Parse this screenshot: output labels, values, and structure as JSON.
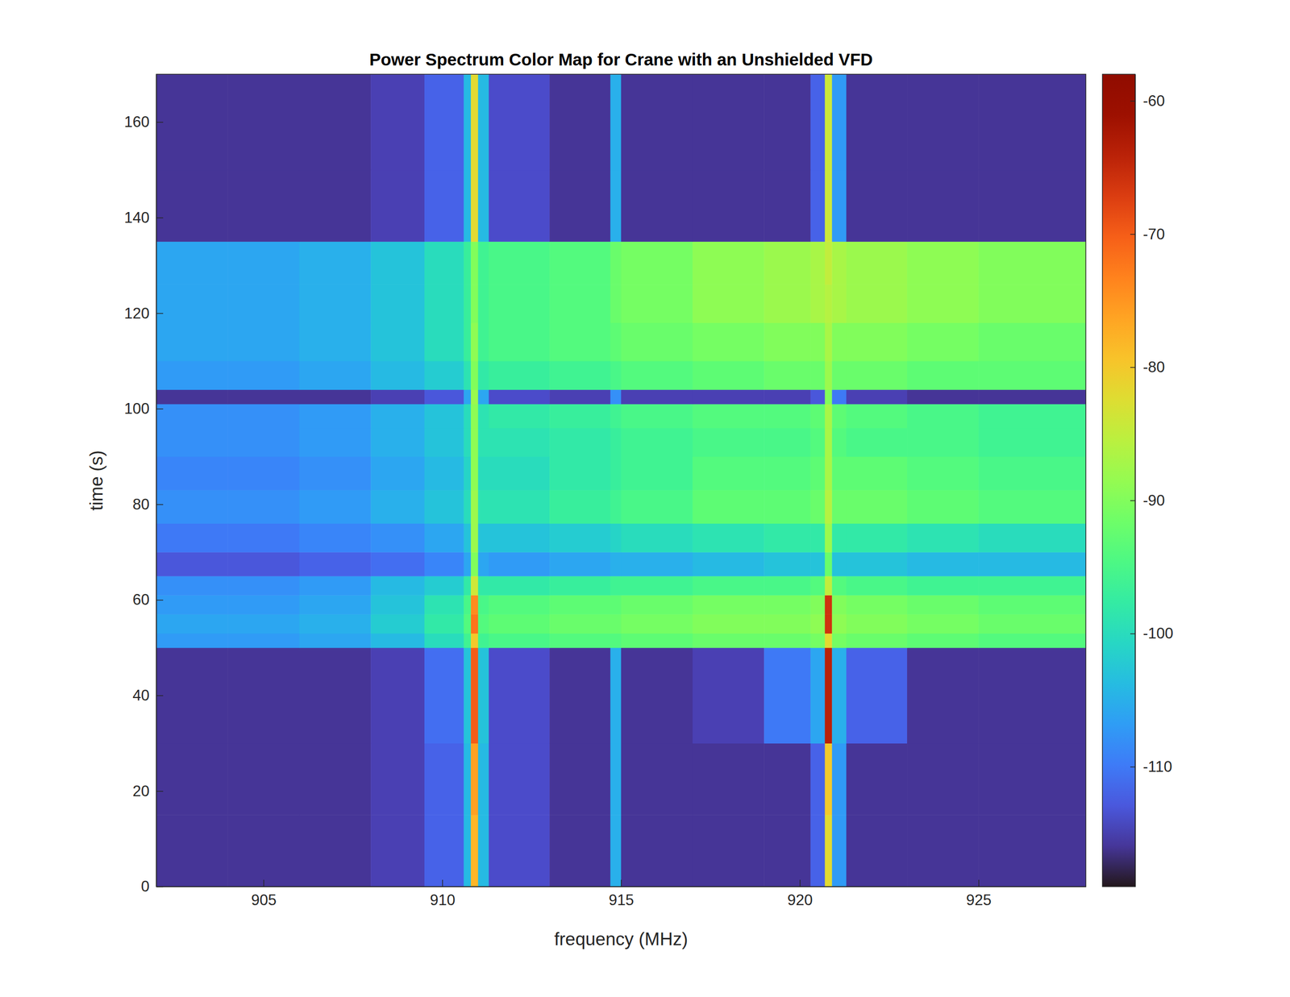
{
  "chart_data": {
    "type": "heatmap",
    "title": "Power Spectrum Color Map for Crane with an Unshielded VFD",
    "x_label": "frequency (MHz)",
    "y_label": "time (s)",
    "xlim": [
      902,
      928
    ],
    "ylim": [
      0,
      170
    ],
    "xticks": [
      905,
      910,
      915,
      920,
      925
    ],
    "yticks": [
      0,
      20,
      40,
      60,
      80,
      100,
      120,
      140,
      160
    ],
    "xbins": [
      902,
      904,
      906,
      908,
      909.5,
      910.6,
      910.8,
      911.0,
      911.3,
      913,
      914.7,
      915.0,
      917,
      919,
      920.3,
      920.7,
      920.9,
      921.3,
      923,
      925,
      928
    ],
    "ybins": [
      0,
      15,
      30,
      50,
      53,
      57,
      61,
      65,
      70,
      76,
      83,
      90,
      96,
      101,
      104,
      110,
      118,
      126,
      135,
      150,
      170
    ],
    "cells": [
      [
        -116,
        -116,
        -116,
        -115,
        -112,
        -104,
        -78,
        -104,
        -114,
        -116,
        -105,
        -116,
        -116,
        -116,
        -112,
        -82,
        -107,
        -116,
        -116,
        -116
      ],
      [
        -116,
        -116,
        -116,
        -115,
        -112,
        -104,
        -76,
        -104,
        -114,
        -116,
        -105,
        -116,
        -116,
        -116,
        -112,
        -80,
        -107,
        -116,
        -116,
        -116
      ],
      [
        -116,
        -116,
        -116,
        -115,
        -111,
        -103,
        -70,
        -103,
        -114,
        -116,
        -105,
        -116,
        -115,
        -110,
        -106,
        -64,
        -105,
        -112,
        -116,
        -116
      ],
      [
        -107,
        -107,
        -106,
        -104,
        -100,
        -96,
        -80,
        -96,
        -95,
        -94,
        -94,
        -93,
        -92,
        -92,
        -91,
        -82,
        -91,
        -92,
        -93,
        -94
      ],
      [
        -106,
        -106,
        -105,
        -102,
        -98,
        -94,
        -72,
        -94,
        -93,
        -92,
        -92,
        -91,
        -90,
        -90,
        -89,
        -66,
        -89,
        -90,
        -91,
        -92
      ],
      [
        -107,
        -107,
        -106,
        -103,
        -99,
        -95,
        -74,
        -95,
        -94,
        -93,
        -93,
        -92,
        -91,
        -91,
        -90,
        -66,
        -90,
        -91,
        -92,
        -93
      ],
      [
        -108,
        -108,
        -107,
        -104,
        -102,
        -98,
        -84,
        -98,
        -98,
        -97,
        -96,
        -96,
        -95,
        -95,
        -94,
        -85,
        -94,
        -95,
        -96,
        -96
      ],
      [
        -113,
        -113,
        -112,
        -111,
        -109,
        -106,
        -90,
        -106,
        -107,
        -106,
        -105,
        -105,
        -104,
        -103,
        -103,
        -92,
        -103,
        -103,
        -104,
        -104
      ],
      [
        -110,
        -110,
        -109,
        -108,
        -106,
        -103,
        -88,
        -103,
        -103,
        -102,
        -101,
        -100,
        -99,
        -98,
        -98,
        -88,
        -98,
        -98,
        -99,
        -100
      ],
      [
        -108,
        -108,
        -107,
        -105,
        -103,
        -100,
        -88,
        -99,
        -99,
        -97,
        -96,
        -95,
        -93,
        -93,
        -92,
        -86,
        -92,
        -92,
        -93,
        -94
      ],
      [
        -109,
        -109,
        -108,
        -106,
        -104,
        -101,
        -89,
        -100,
        -100,
        -98,
        -97,
        -96,
        -94,
        -94,
        -93,
        -87,
        -93,
        -93,
        -94,
        -95
      ],
      [
        -108,
        -108,
        -107,
        -105,
        -103,
        -100,
        -89,
        -99,
        -99,
        -98,
        -97,
        -96,
        -95,
        -95,
        -94,
        -87,
        -94,
        -95,
        -95,
        -96
      ],
      [
        -108,
        -108,
        -107,
        -105,
        -103,
        -100,
        -89,
        -99,
        -98,
        -97,
        -96,
        -95,
        -94,
        -94,
        -93,
        -87,
        -93,
        -94,
        -95,
        -96
      ],
      [
        -116,
        -116,
        -116,
        -115,
        -113,
        -106,
        -88,
        -106,
        -114,
        -115,
        -108,
        -115,
        -115,
        -115,
        -113,
        -90,
        -110,
        -115,
        -116,
        -116
      ],
      [
        -107,
        -107,
        -106,
        -104,
        -102,
        -99,
        -90,
        -98,
        -97,
        -96,
        -95,
        -94,
        -93,
        -92,
        -92,
        -88,
        -92,
        -92,
        -93,
        -93
      ],
      [
        -106,
        -106,
        -105,
        -103,
        -100,
        -97,
        -89,
        -96,
        -95,
        -94,
        -93,
        -92,
        -91,
        -90,
        -90,
        -87,
        -90,
        -90,
        -91,
        -92
      ],
      [
        -106,
        -106,
        -105,
        -103,
        -100,
        -97,
        -90,
        -96,
        -95,
        -94,
        -92,
        -91,
        -89,
        -88,
        -87,
        -86,
        -87,
        -88,
        -89,
        -90
      ],
      [
        -106,
        -106,
        -105,
        -103,
        -100,
        -97,
        -90,
        -96,
        -95,
        -94,
        -92,
        -91,
        -89,
        -88,
        -87,
        -85,
        -87,
        -88,
        -89,
        -90
      ],
      [
        -116,
        -116,
        -116,
        -115,
        -112,
        -104,
        -82,
        -104,
        -114,
        -116,
        -105,
        -116,
        -116,
        -116,
        -112,
        -84,
        -107,
        -116,
        -116,
        -116
      ],
      [
        -116,
        -116,
        -116,
        -115,
        -112,
        -104,
        -82,
        -104,
        -114,
        -116,
        -105,
        -116,
        -116,
        -116,
        -112,
        -84,
        -107,
        -116,
        -116,
        -116
      ]
    ],
    "color_range": [
      -119,
      -58
    ],
    "color_ticks": [
      -110,
      -100,
      -90,
      -80,
      -70,
      -60
    ]
  }
}
